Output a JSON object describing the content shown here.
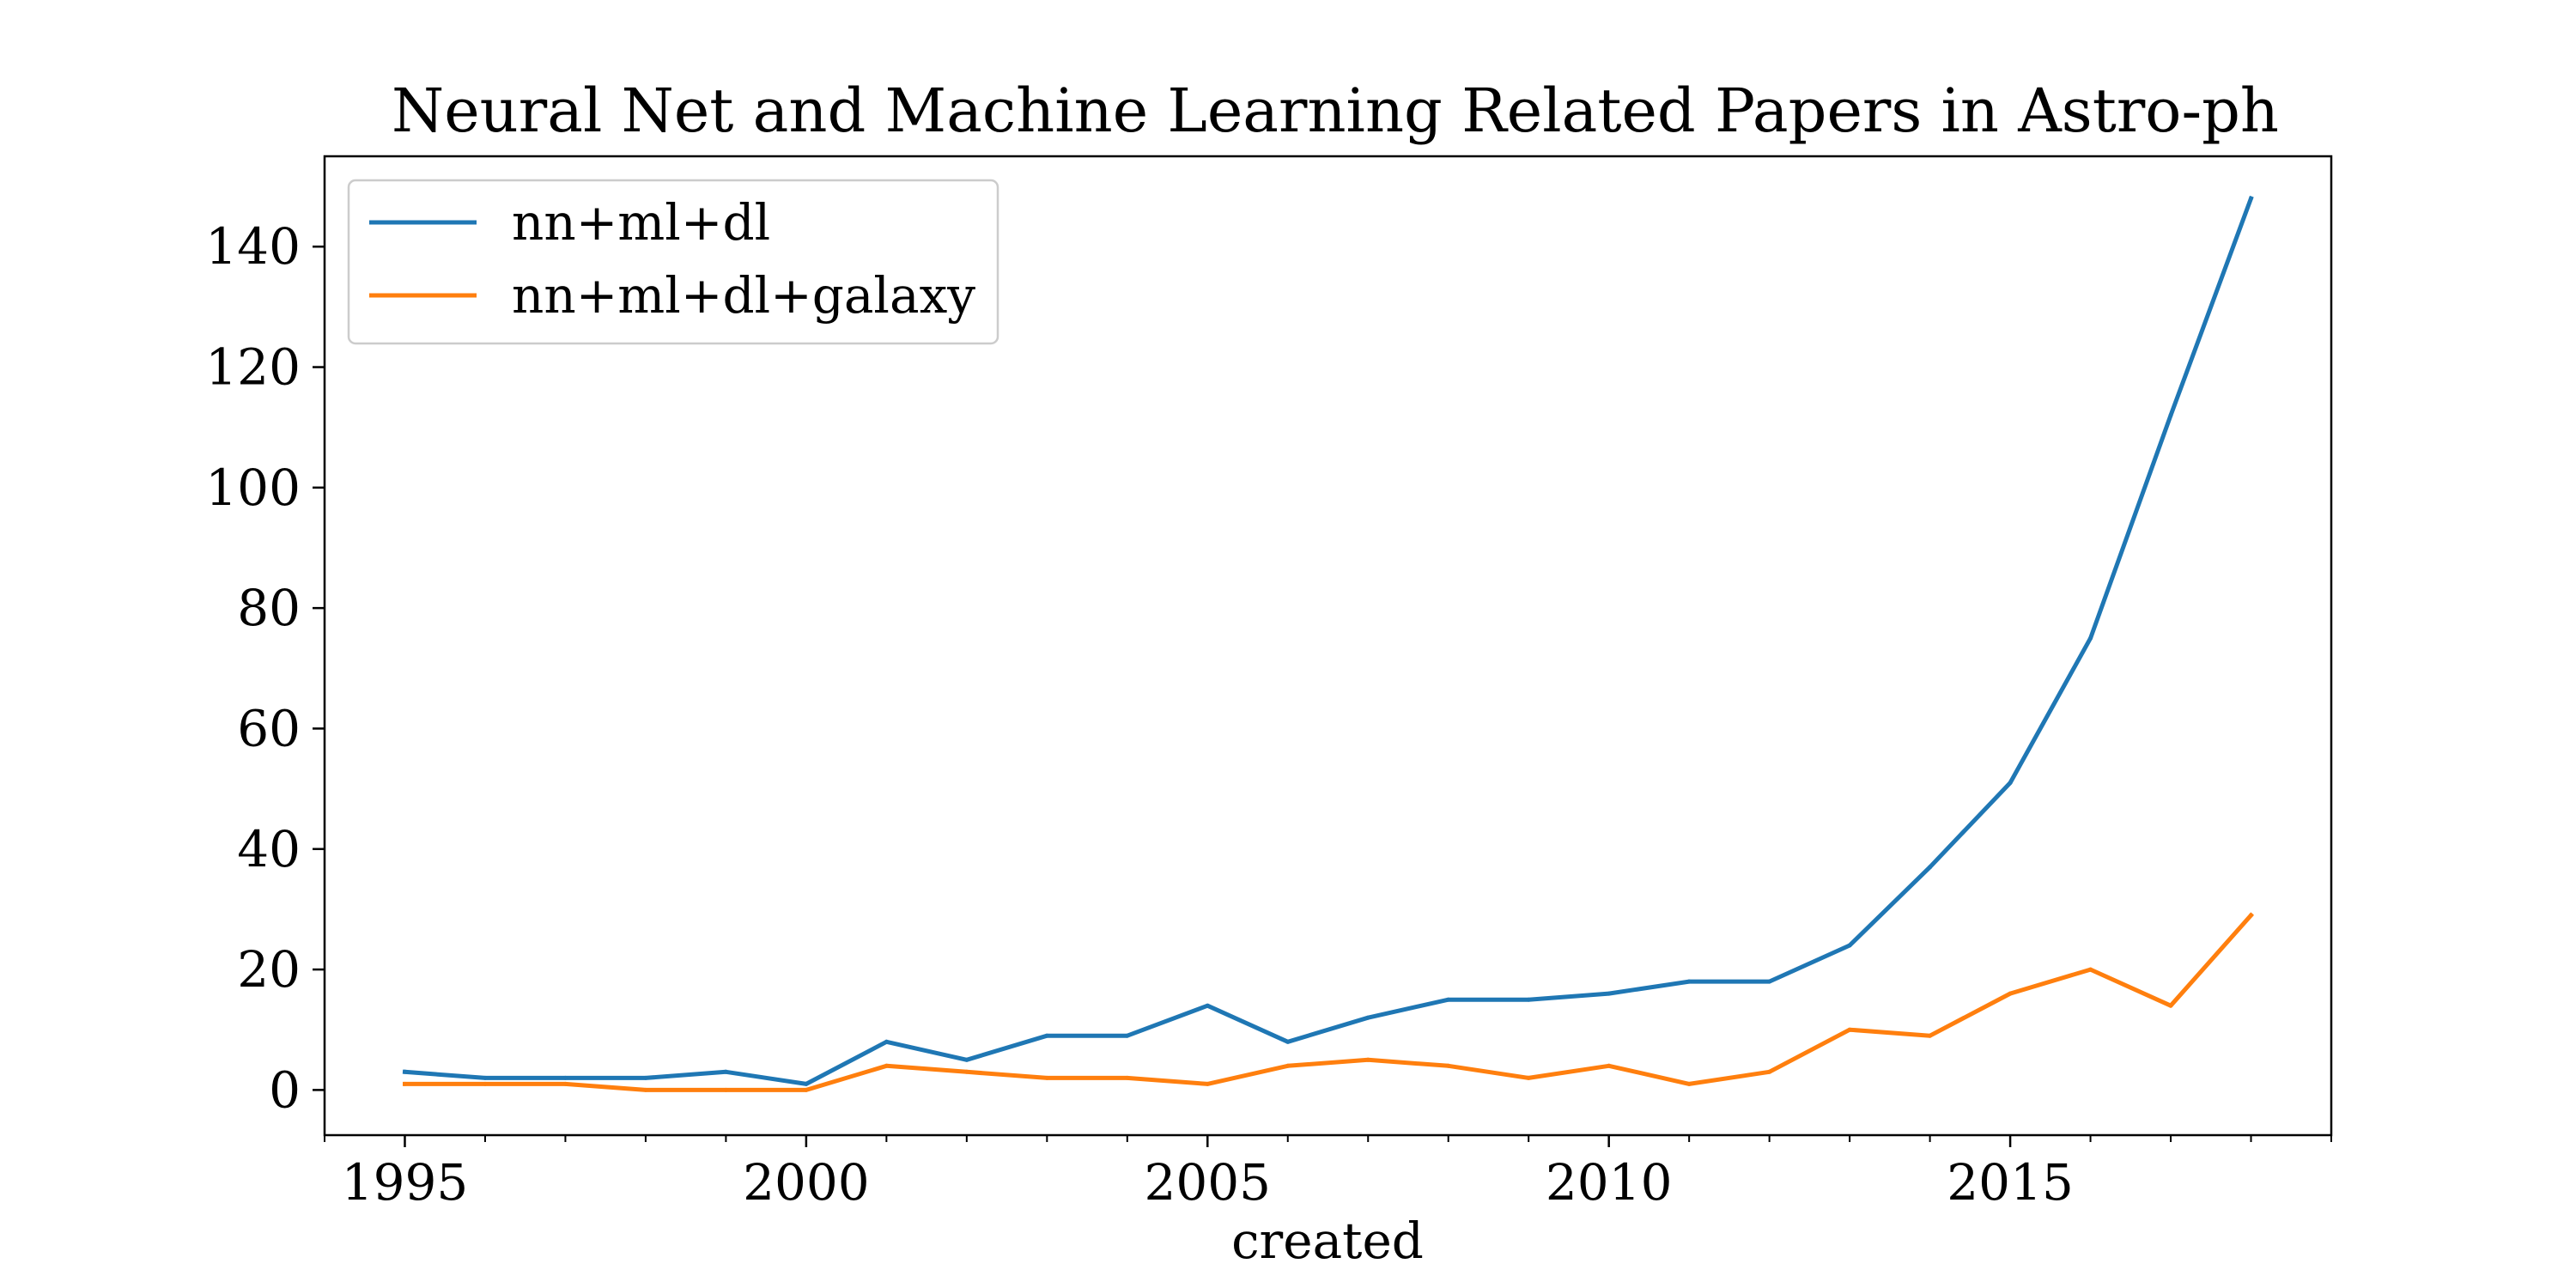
{
  "chart_data": {
    "type": "line",
    "title": "Neural Net and Machine Learning Related Papers in Astro-ph",
    "xlabel": "created",
    "ylabel": "",
    "x": [
      1995,
      1996,
      1997,
      1998,
      1999,
      2000,
      2001,
      2002,
      2003,
      2004,
      2005,
      2006,
      2007,
      2008,
      2009,
      2010,
      2011,
      2012,
      2013,
      2014,
      2015,
      2016,
      2017,
      2018
    ],
    "xlim": [
      1994,
      2019
    ],
    "ylim": [
      -7.5,
      155
    ],
    "xticks": [
      1995,
      2000,
      2005,
      2010,
      2015
    ],
    "xtick_labels": [
      "1995",
      "2000",
      "2005",
      "2010",
      "2015"
    ],
    "yticks": [
      0,
      20,
      40,
      60,
      80,
      100,
      120,
      140
    ],
    "ytick_labels": [
      "0",
      "20",
      "40",
      "60",
      "80",
      "100",
      "120",
      "140"
    ],
    "grid": false,
    "legend_position": "top-left",
    "series": [
      {
        "name": "nn+ml+dl",
        "color": "#1f77b4",
        "values": [
          3,
          2,
          2,
          2,
          3,
          1,
          8,
          5,
          9,
          9,
          14,
          8,
          12,
          15,
          15,
          16,
          18,
          18,
          24,
          37,
          51,
          75,
          112,
          148
        ]
      },
      {
        "name": "nn+ml+dl+galaxy",
        "color": "#ff7f0e",
        "values": [
          1,
          1,
          1,
          0,
          0,
          0,
          4,
          3,
          2,
          2,
          1,
          4,
          5,
          4,
          2,
          4,
          1,
          3,
          10,
          9,
          16,
          20,
          14,
          29
        ]
      }
    ]
  }
}
